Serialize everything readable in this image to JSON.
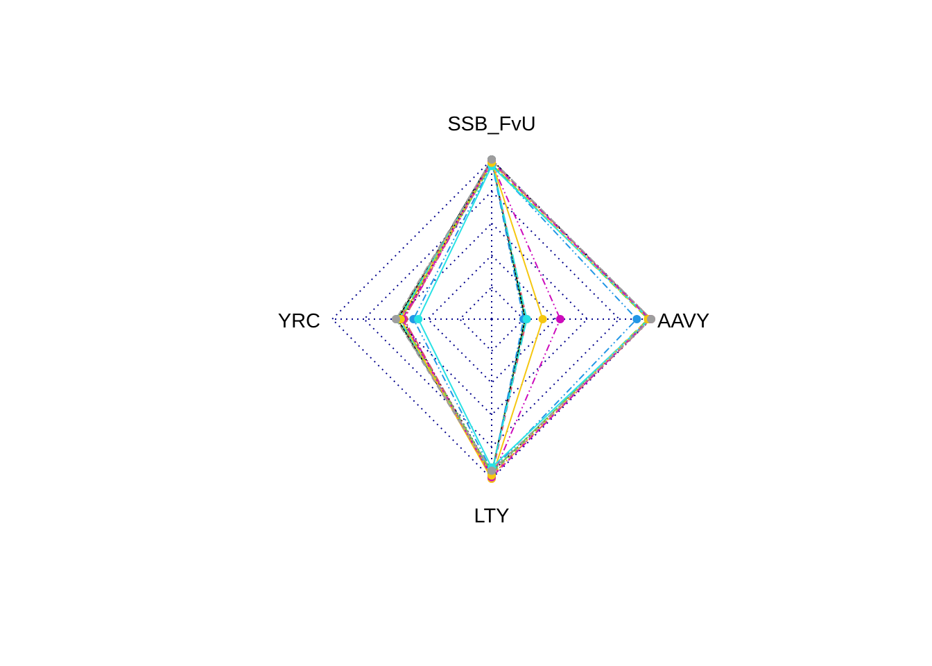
{
  "chart_data": {
    "type": "radar",
    "axes": [
      "SSB_FvU",
      "AAVY",
      "LTY",
      "YRC"
    ],
    "range": [
      0,
      1
    ],
    "grid_levels": 5,
    "grid": true,
    "legend": "none",
    "series": [
      {
        "color": "#000000",
        "dash": "",
        "values": [
          1.0,
          0.21,
          0.97,
          0.59
        ]
      },
      {
        "color": "#DF536B",
        "dash": "8 6",
        "values": [
          1.0,
          0.22,
          0.99,
          0.58
        ]
      },
      {
        "color": "#61D04F",
        "dash": "2 4",
        "values": [
          0.99,
          0.21,
          0.96,
          0.59
        ]
      },
      {
        "color": "#2297E6",
        "dash": "10 4 2 4",
        "values": [
          0.99,
          0.2,
          0.98,
          0.57
        ]
      },
      {
        "color": "#28E2E5",
        "dash": "14 6",
        "values": [
          1.0,
          0.22,
          0.97,
          0.58
        ]
      },
      {
        "color": "#CD0BBC",
        "dash": "10 4 2 4 2 4",
        "values": [
          0.98,
          0.43,
          1.0,
          0.55
        ]
      },
      {
        "color": "#F5C710",
        "dash": "",
        "values": [
          0.99,
          0.32,
          1.0,
          0.57
        ]
      },
      {
        "color": "#9E9E9E",
        "dash": "8 6",
        "values": [
          0.98,
          1.0,
          0.97,
          0.6
        ]
      },
      {
        "color": "#000000",
        "dash": "2 4",
        "values": [
          1.0,
          0.99,
          0.96,
          0.56
        ]
      },
      {
        "color": "#DF536B",
        "dash": "10 4 2 4",
        "values": [
          0.99,
          1.0,
          0.98,
          0.55
        ]
      },
      {
        "color": "#61D04F",
        "dash": "14 6",
        "values": [
          0.97,
          0.98,
          0.96,
          0.57
        ]
      },
      {
        "color": "#2297E6",
        "dash": "10 4 2 4 2 4",
        "values": [
          0.97,
          0.91,
          0.95,
          0.49
        ]
      },
      {
        "color": "#28E2E5",
        "dash": "",
        "values": [
          0.96,
          0.99,
          0.93,
          0.46
        ]
      },
      {
        "color": "#CD0BBC",
        "dash": "8 6",
        "values": [
          0.99,
          0.99,
          0.99,
          0.56
        ]
      },
      {
        "color": "#F5C710",
        "dash": "2 4",
        "values": [
          0.98,
          0.98,
          0.98,
          0.57
        ]
      },
      {
        "color": "#9E9E9E",
        "dash": "10 4 2 4",
        "values": [
          1.0,
          1.0,
          0.95,
          0.6
        ]
      }
    ]
  }
}
